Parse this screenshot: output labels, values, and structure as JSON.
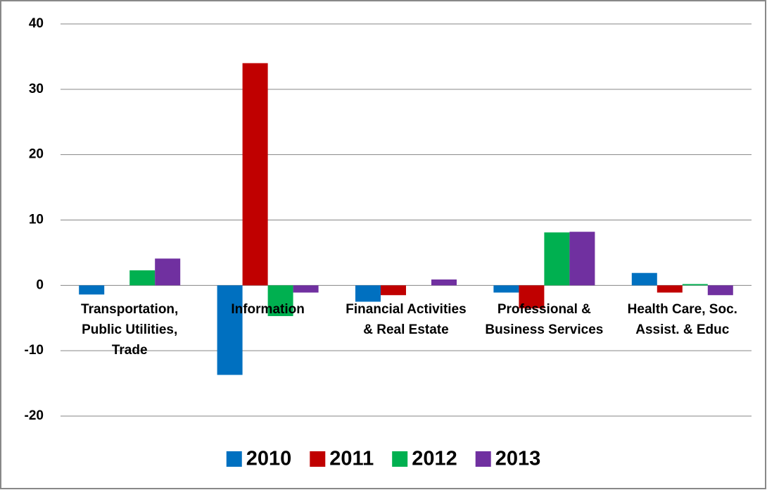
{
  "chart_data": {
    "type": "bar",
    "categories": [
      "Transportation, Public Utilities, Trade",
      "Information",
      "Financial Activities & Real Estate",
      "Professional & Business Services",
      "Health Care, Soc. Assist. & Educ"
    ],
    "series": [
      {
        "name": "2010",
        "color": "#0070c0",
        "values": [
          -1.4,
          -13.7,
          -2.5,
          -1.1,
          1.9
        ]
      },
      {
        "name": "2011",
        "color": "#c00000",
        "values": [
          0,
          34,
          -1.5,
          -3.5,
          -1.1
        ]
      },
      {
        "name": "2012",
        "color": "#00b050",
        "values": [
          2.3,
          -4.7,
          0,
          8.1,
          0.2
        ]
      },
      {
        "name": "2013",
        "color": "#7030a0",
        "values": [
          4.1,
          -1.1,
          0.9,
          8.2,
          -1.5
        ]
      }
    ],
    "ylim": [
      -20,
      40
    ],
    "yticks": [
      -20,
      -10,
      0,
      10,
      20,
      30,
      40
    ],
    "grid": true,
    "legend": "bottom"
  }
}
